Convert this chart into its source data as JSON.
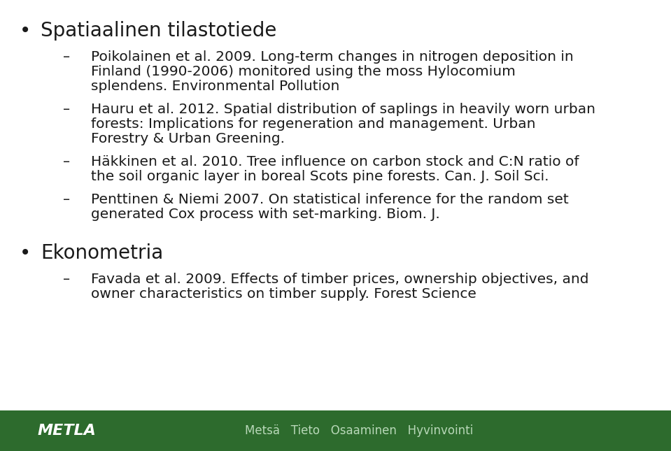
{
  "bg_color": "#ffffff",
  "footer_bg": "#2d6b2d",
  "footer_text_color": "#b8d8b8",
  "footer_text": "Metsä   Tieto   Osaaminen   Hyvinvointi",
  "footer_logo": "METLA",
  "text_color": "#1a1a1a",
  "bullet1_header": "Spatiaalinen tilastotiede",
  "bullet2_header": "Ekonometria",
  "font_family": "DejaVu Sans",
  "header_fontsize": 20,
  "item_fontsize": 14.5,
  "footer_fontsize": 12,
  "footer_logo_fontsize": 16,
  "item_lines": [
    [
      "Poikolainen et al. 2009. Long-term changes in nitrogen deposition in",
      "Finland (1990-2006) monitored using the moss Hylocomium",
      "splendens. Environmental Pollution"
    ],
    [
      "Hauru et al. 2012. Spatial distribution of saplings in heavily worn urban",
      "forests: Implications for regeneration and management. Urban",
      "Forestry & Urban Greening."
    ],
    [
      "Häkkinen et al. 2010. Tree influence on carbon stock and C:N ratio of",
      "the soil organic layer in boreal Scots pine forests. Can. J. Soil Sci."
    ],
    [
      "Penttinen & Niemi 2007. On statistical inference for the random set",
      "generated Cox process with set-marking. Biom. J."
    ]
  ],
  "item2_lines": [
    [
      "Favada et al. 2009. Effects of timber prices, ownership objectives, and",
      "owner characteristics on timber supply. Forest Science"
    ]
  ]
}
